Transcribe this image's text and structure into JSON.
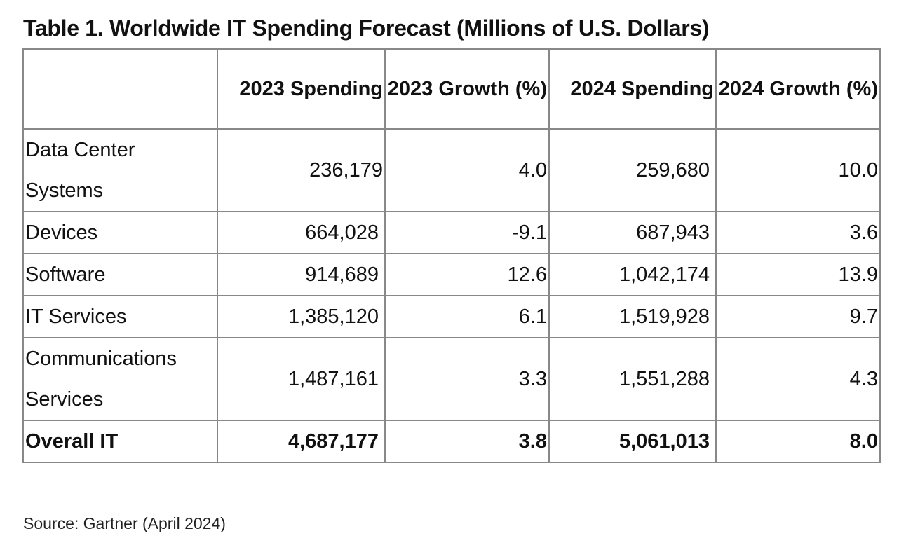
{
  "title": "Table 1. Worldwide IT Spending Forecast (Millions of U.S. Dollars)",
  "headers": {
    "col0": "",
    "col1": "2023 Spending",
    "col2": "2023 Growth (%)",
    "col3": "2024 Spending",
    "col4": "2024 Growth (%)"
  },
  "rows": [
    {
      "segment": "Data Center Systems",
      "spending_2023": "236,179",
      "growth_2023": "4.0",
      "spending_2024": "259,680",
      "growth_2024": "10.0"
    },
    {
      "segment": "Devices",
      "spending_2023": "664,028",
      "growth_2023": "-9.1",
      "spending_2024": "687,943",
      "growth_2024": "3.6"
    },
    {
      "segment": "Software",
      "spending_2023": "914,689",
      "growth_2023": "12.6",
      "spending_2024": "1,042,174",
      "growth_2024": "13.9"
    },
    {
      "segment": "IT Services",
      "spending_2023": "1,385,120",
      "growth_2023": "6.1",
      "spending_2024": "1,519,928",
      "growth_2024": "9.7"
    },
    {
      "segment": "Communications Services",
      "spending_2023": "1,487,161",
      "growth_2023": "3.3",
      "spending_2024": "1,551,288",
      "growth_2024": "4.3"
    }
  ],
  "total": {
    "segment": "Overall IT",
    "spending_2023": "4,687,177",
    "growth_2023": "3.8",
    "spending_2024": "5,061,013",
    "growth_2024": "8.0"
  },
  "source": "Source: Gartner (April 2024)"
}
